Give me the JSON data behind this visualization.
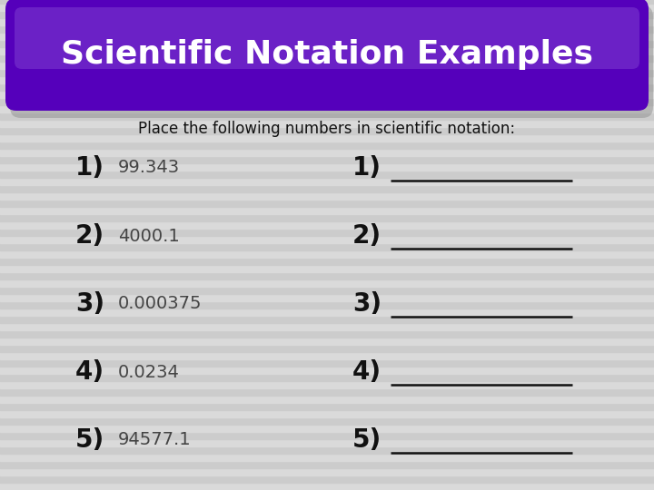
{
  "title": "Scientific Notation Examples",
  "subtitle": "Place the following numbers in scientific notation:",
  "left_numbers": [
    "1)",
    "2)",
    "3)",
    "4)",
    "5)"
  ],
  "left_values": [
    "99.343",
    "4000.1",
    "0.000375",
    "0.0234",
    "94577.1"
  ],
  "right_labels": [
    "1)",
    "2)",
    "3)",
    "4)",
    "5)"
  ],
  "bg_color": "#d4d4d4",
  "stripe_color_light": "#dadada",
  "stripe_color_dark": "#cccccc",
  "pill_color_main": "#5500bb",
  "pill_color_light": "#7733cc",
  "pill_color_dark": "#3300aa",
  "pill_shadow": "#888888",
  "title_text_color": "#ffffff",
  "subtitle_color": "#111111",
  "item_number_color": "#111111",
  "item_value_color": "#444444",
  "line_color": "#111111",
  "title_fontsize": 26,
  "subtitle_fontsize": 12,
  "item_num_fontsize": 20,
  "item_val_fontsize": 14
}
